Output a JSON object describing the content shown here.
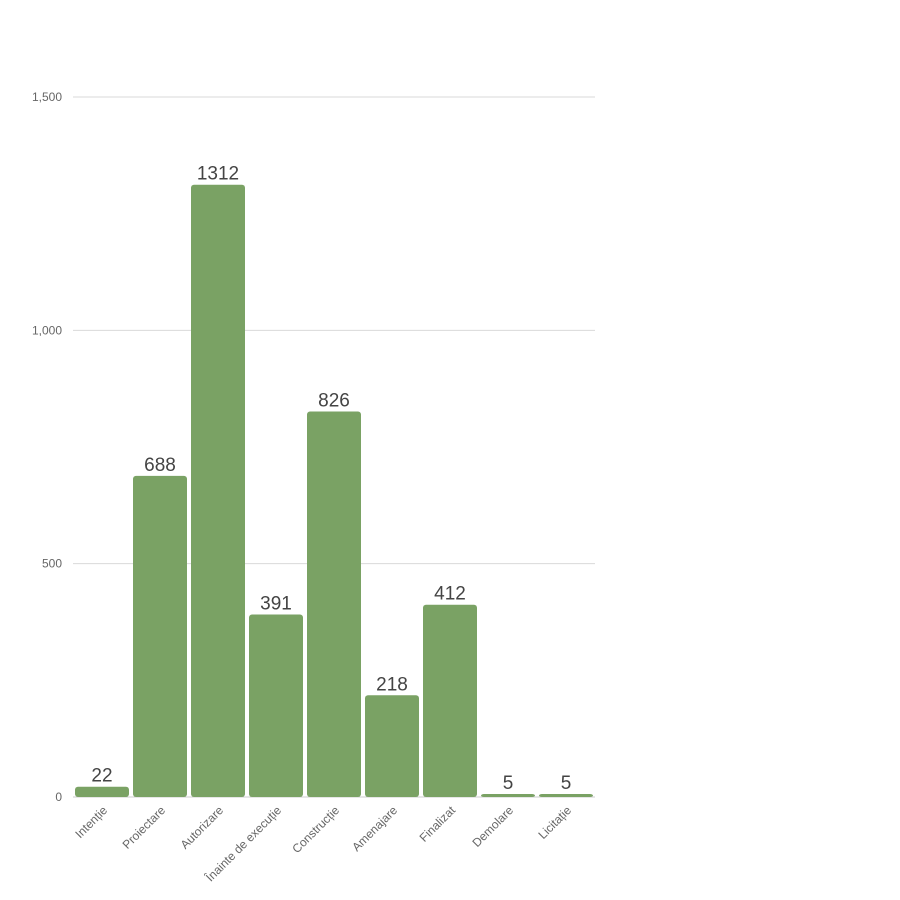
{
  "chart_data": {
    "type": "bar",
    "categories": [
      "Intenție",
      "Proiectare",
      "Autorizare",
      "Înainte de execuție",
      "Construcție",
      "Amenajare",
      "Finalizat",
      "Demolare",
      "Licitație"
    ],
    "values": [
      22,
      688,
      1312,
      391,
      826,
      218,
      412,
      5,
      5
    ],
    "data_labels": [
      "22",
      "688",
      "1312",
      "391",
      "826",
      "218",
      "412",
      "5",
      "5"
    ],
    "title": "",
    "xlabel": "",
    "ylabel": "",
    "ylim": [
      0,
      1500
    ],
    "y_ticks": [
      0,
      500,
      1000,
      1500
    ],
    "y_tick_labels": [
      "0",
      "500",
      "1,000",
      "1,500"
    ],
    "grid": true,
    "legend": "none",
    "bar_color": "#7aa264"
  }
}
